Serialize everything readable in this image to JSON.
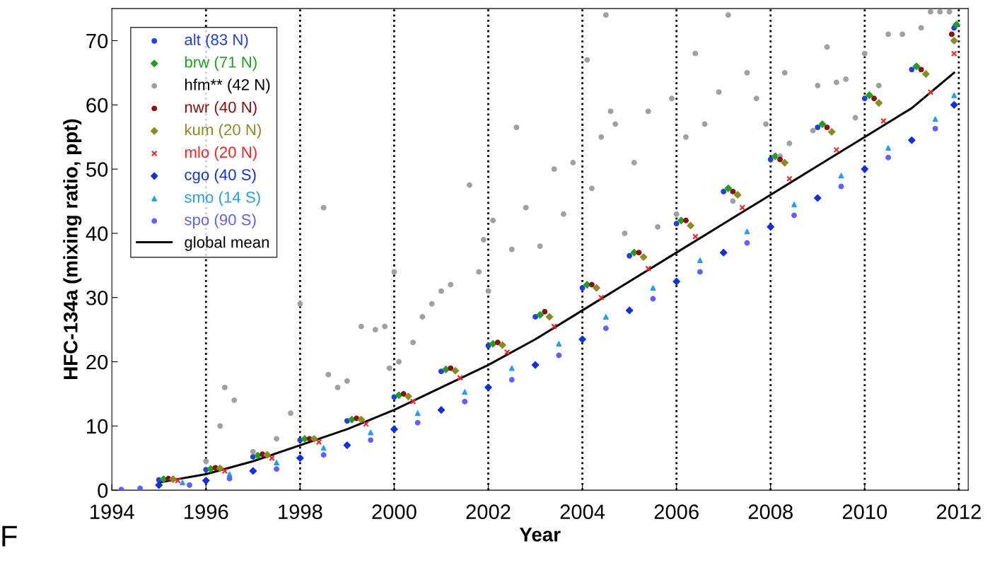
{
  "chart_data": {
    "type": "scatter",
    "xlabel": "Year",
    "ylabel": "HFC-134a (mixing ratio, ppt)",
    "xlim": [
      1994,
      2012.2
    ],
    "ylim": [
      0,
      75
    ],
    "xticks": [
      1994,
      1996,
      1998,
      2000,
      2002,
      2004,
      2006,
      2008,
      2010,
      2012
    ],
    "yticks": [
      0,
      10,
      20,
      30,
      40,
      50,
      60,
      70
    ],
    "legend": "top left",
    "grid": false,
    "ref_lines": [
      {
        "axis": "x",
        "value": 1996,
        "color": "#000000",
        "line_style": "dotted"
      },
      {
        "axis": "x",
        "value": 1998,
        "color": "#000000",
        "line_style": "dotted"
      },
      {
        "axis": "x",
        "value": 2000,
        "color": "#000000",
        "line_style": "dotted"
      },
      {
        "axis": "x",
        "value": 2002,
        "color": "#000000",
        "line_style": "dotted"
      },
      {
        "axis": "x",
        "value": 2004,
        "color": "#000000",
        "line_style": "dotted"
      },
      {
        "axis": "x",
        "value": 2006,
        "color": "#000000",
        "line_style": "dotted"
      },
      {
        "axis": "x",
        "value": 2008,
        "color": "#000000",
        "line_style": "dotted"
      },
      {
        "axis": "x",
        "value": 2010,
        "color": "#000000",
        "line_style": "dotted"
      },
      {
        "axis": "x",
        "value": 2012,
        "color": "#000000",
        "line_style": "dotted"
      }
    ],
    "annotations": [
      {
        "text": "F"
      }
    ],
    "series": [
      {
        "name": "alt (83 N)",
        "color": "#2040e0",
        "marker": "circle",
        "x": [
          1995,
          1996,
          1997,
          1998,
          1999,
          2000,
          2001,
          2002,
          2003,
          2004,
          2005,
          2006,
          2007,
          2008,
          2009,
          2010,
          2011,
          2011.9
        ],
        "values": [
          1.6,
          3.2,
          5.2,
          7.8,
          10.8,
          14.5,
          18.5,
          22.5,
          27,
          31.5,
          36.5,
          41.5,
          46.5,
          51.5,
          56.5,
          61,
          65.5,
          72
        ]
      },
      {
        "name": "brw (71 N)",
        "color": "#20a020",
        "marker": "diamond",
        "x": [
          1995.1,
          1996.1,
          1997.1,
          1998.1,
          1999.1,
          2000.1,
          2001.1,
          2002.1,
          2003.1,
          2004.1,
          2005.1,
          2006.1,
          2007.1,
          2008.1,
          2009.1,
          2010.1,
          2011.1,
          2011.95
        ],
        "values": [
          1.7,
          3.3,
          5.4,
          8,
          11,
          14.8,
          18.8,
          22.8,
          27.3,
          32,
          37,
          42,
          47,
          52,
          57,
          61.5,
          66,
          72.5
        ]
      },
      {
        "name": "hfm** (42 N)",
        "color": "#a0a0a0",
        "marker": "circle",
        "x": [
          1996.0,
          1996.3,
          1996.4,
          1996.6,
          1997.0,
          1997.5,
          1997.8,
          1998.0,
          1998.5,
          1998.6,
          1998.8,
          1999.0,
          1999.3,
          1999.6,
          1999.8,
          1999.9,
          2000.0,
          2000.1,
          2000.4,
          2000.6,
          2000.8,
          2001.0,
          2001.2,
          2001.6,
          2001.8,
          2001.9,
          2002.0,
          2002.1,
          2002.5,
          2002.6,
          2002.8,
          2003.1,
          2003.4,
          2003.6,
          2003.8,
          2004.1,
          2004.2,
          2004.4,
          2004.5,
          2004.6,
          2004.7,
          2004.9,
          2005.1,
          2005.4,
          2005.6,
          2005.9,
          2006.0,
          2006.2,
          2006.4,
          2006.6,
          2006.9,
          2007.1,
          2007.2,
          2007.5,
          2007.7,
          2007.9,
          2008.2,
          2008.3,
          2008.4,
          2008.9,
          2009.0,
          2009.2,
          2009.4,
          2009.6,
          2009.8,
          2010.0,
          2010.3,
          2010.5,
          2010.8,
          2011.2,
          2011.4,
          2011.6,
          2011.8
        ],
        "values": [
          4.5,
          10,
          16,
          14,
          6,
          8,
          12,
          29,
          44,
          18,
          16,
          17,
          25.5,
          25,
          25.5,
          19,
          34,
          20,
          23,
          27,
          29,
          31,
          32,
          47.5,
          34,
          39,
          31,
          42,
          37.5,
          56.5,
          44,
          38,
          50,
          43,
          51,
          67,
          47,
          55,
          74,
          59,
          57,
          40,
          51,
          59,
          41,
          61,
          43,
          55,
          68,
          57,
          62,
          74,
          45,
          65,
          61,
          57,
          52,
          65,
          54,
          56,
          63,
          69,
          63.5,
          64,
          58,
          68,
          63,
          71,
          71,
          72,
          74.5,
          74.5,
          74.5
        ]
      },
      {
        "name": "nwr (40 N)",
        "color": "#8b1010",
        "marker": "circle",
        "x": [
          1995.2,
          1996.2,
          1997.2,
          1998.2,
          1999.2,
          2000.2,
          2001.2,
          2002.2,
          2003.2,
          2004.2,
          2005.2,
          2006.2,
          2007.2,
          2008.2,
          2009.2,
          2010.2,
          2011.2,
          2011.85
        ],
        "values": [
          1.8,
          3.5,
          5.6,
          8,
          11.2,
          15,
          19,
          23,
          27.8,
          32,
          37,
          42,
          46.5,
          51.5,
          56.5,
          61,
          65.5,
          71
        ]
      },
      {
        "name": "kum (20 N)",
        "color": "#8b8b20",
        "marker": "diamond",
        "x": [
          1995.3,
          1996.3,
          1997.3,
          1998.3,
          1999.3,
          2000.3,
          2001.3,
          2002.3,
          2003.3,
          2004.3,
          2005.3,
          2006.3,
          2007.3,
          2008.3,
          2009.3,
          2010.3,
          2011.3,
          2011.9
        ],
        "values": [
          1.7,
          3.4,
          5.5,
          8,
          11,
          14.6,
          18.6,
          22.6,
          27,
          31.5,
          36.3,
          41.2,
          46,
          51,
          55.8,
          60.3,
          64.8,
          70
        ]
      },
      {
        "name": "mlo (20 N)",
        "color": "#ff2020",
        "marker": "cross",
        "x": [
          1995.4,
          1996.4,
          1997.4,
          1998.4,
          1999.4,
          2000.4,
          2001.4,
          2002.4,
          2003.4,
          2004.4,
          2005.4,
          2006.4,
          2007.4,
          2008.4,
          2009.4,
          2010.4,
          2011.4,
          2011.9
        ],
        "values": [
          1.5,
          3,
          5,
          7.5,
          10.3,
          13.8,
          17.5,
          21.5,
          25.5,
          30,
          34.5,
          39.5,
          44,
          48.5,
          53,
          57.5,
          62,
          68
        ]
      },
      {
        "name": "cgo (40 S)",
        "color": "#1030e0",
        "marker": "diamond",
        "x": [
          1995,
          1996,
          1997,
          1998,
          1999,
          2000,
          2001,
          2002,
          2003,
          2004,
          2005,
          2006,
          2007,
          2008,
          2009,
          2010,
          2011,
          2011.9
        ],
        "values": [
          0.8,
          1.5,
          3,
          5,
          7,
          9.5,
          12.5,
          16,
          19.5,
          23.5,
          28,
          32.5,
          37,
          41,
          45.5,
          50,
          54.5,
          60
        ]
      },
      {
        "name": "smo (14 S)",
        "color": "#20a0f0",
        "marker": "triangle",
        "x": [
          1995.5,
          1996.5,
          1997.5,
          1998.5,
          1999.5,
          2000.5,
          2001.5,
          2002.5,
          2003.5,
          2004.5,
          2005.5,
          2006.5,
          2007.5,
          2008.5,
          2009.5,
          2010.5,
          2011.5,
          2011.9
        ],
        "values": [
          1.2,
          2.5,
          4.3,
          6.6,
          9,
          12,
          15.3,
          19,
          22.8,
          27,
          31.5,
          35.8,
          40.3,
          44.5,
          49,
          53.3,
          57.8,
          61.5
        ]
      },
      {
        "name": "spo (90 S)",
        "color": "#6060ff",
        "marker": "circle",
        "x": [
          1994.2,
          1994.6,
          1995.65,
          1996.5,
          1997.5,
          1998.5,
          1999.5,
          2000.5,
          2001.5,
          2002.5,
          2003.5,
          2004.5,
          2005.5,
          2006.5,
          2007.5,
          2008.5,
          2009.5,
          2010.5,
          2011.5
        ],
        "values": [
          0.1,
          0.3,
          0.8,
          1.8,
          3.3,
          5.5,
          7.8,
          10.5,
          13.8,
          17.2,
          21,
          25.2,
          29.8,
          34,
          38.5,
          42.8,
          47.3,
          51.8,
          56.3
        ]
      },
      {
        "name": "global mean",
        "type": "line",
        "color": "#000000",
        "marker": "none",
        "line_style": "solid",
        "x": [
          1995,
          1996,
          1997,
          1998,
          1999,
          2000,
          2001,
          2002,
          2003,
          2004,
          2005,
          2006,
          2007,
          2008,
          2009,
          2010,
          2011,
          2011.9
        ],
        "values": [
          1.2,
          2.5,
          4.5,
          7,
          9.5,
          12.5,
          16,
          19.5,
          23.5,
          28,
          32.5,
          37,
          41.5,
          46,
          50.5,
          55,
          59.5,
          65
        ]
      }
    ]
  }
}
